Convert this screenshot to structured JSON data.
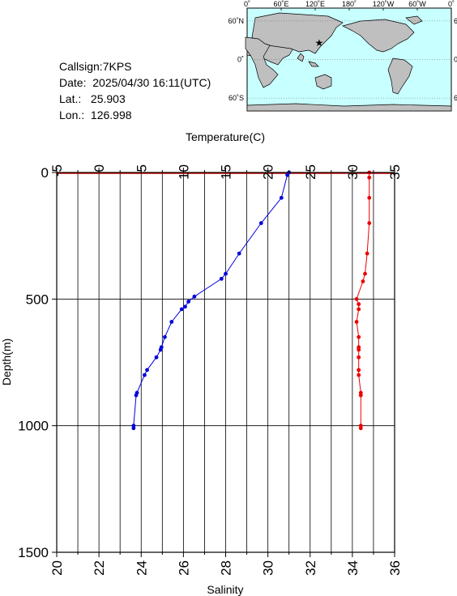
{
  "station": {
    "callsign": "Callsign:7KPS",
    "date": "Date:  2025/04/30 16:11(UTC)",
    "lat": "Lat.:   25.903",
    "lon": "Lon.:  126.998"
  },
  "map": {
    "lon_labels": [
      "0˚",
      "60˚E",
      "120˚E",
      "180˚",
      "120˚W",
      "60˚W",
      "0˚"
    ],
    "lat_labels": [
      "60˚N",
      "0˚",
      "60˚S"
    ],
    "marker": {
      "lat": 25.903,
      "lon": 126.998,
      "symbol": "★"
    },
    "colors": {
      "ocean": "#c8ffff",
      "land": "#bfbfbf",
      "marker": "#ff0000"
    }
  },
  "chart_data": {
    "type": "line",
    "ylabel": "Depth(m)",
    "ylim": [
      1500,
      0
    ],
    "yticks": [
      0,
      500,
      1000,
      1500
    ],
    "top_axis": {
      "label": "Temperature(C)",
      "lim": [
        -5,
        35
      ],
      "ticks": [
        -5,
        0,
        5,
        10,
        15,
        20,
        25,
        30,
        35
      ]
    },
    "bottom_axis": {
      "label": "Salinity",
      "lim": [
        20,
        36
      ],
      "ticks": [
        20,
        22,
        24,
        26,
        28,
        30,
        32,
        34,
        36
      ]
    },
    "grid": true,
    "series": [
      {
        "axis": "top",
        "color": "#0000dd",
        "points": [
          [
            22.5,
            0
          ],
          [
            22.3,
            10
          ],
          [
            21.6,
            100
          ],
          [
            19.2,
            200
          ],
          [
            16.6,
            320
          ],
          [
            15.0,
            400
          ],
          [
            14.5,
            420
          ],
          [
            11.3,
            490
          ],
          [
            10.6,
            510
          ],
          [
            10.2,
            530
          ],
          [
            9.8,
            540
          ],
          [
            8.6,
            590
          ],
          [
            7.8,
            650
          ],
          [
            7.4,
            690
          ],
          [
            7.3,
            700
          ],
          [
            6.8,
            730
          ],
          [
            5.7,
            780
          ],
          [
            5.4,
            800
          ],
          [
            4.5,
            870
          ],
          [
            4.4,
            880
          ],
          [
            4.1,
            1000
          ],
          [
            4.1,
            1010
          ]
        ]
      },
      {
        "axis": "bottom",
        "color": "#ee0000",
        "points": [
          [
            34.8,
            0
          ],
          [
            34.8,
            20
          ],
          [
            34.8,
            100
          ],
          [
            34.8,
            200
          ],
          [
            34.7,
            320
          ],
          [
            34.6,
            400
          ],
          [
            34.5,
            430
          ],
          [
            34.2,
            500
          ],
          [
            34.3,
            520
          ],
          [
            34.3,
            540
          ],
          [
            34.2,
            590
          ],
          [
            34.3,
            650
          ],
          [
            34.3,
            690
          ],
          [
            34.3,
            700
          ],
          [
            34.3,
            730
          ],
          [
            34.3,
            780
          ],
          [
            34.3,
            800
          ],
          [
            34.4,
            870
          ],
          [
            34.4,
            880
          ],
          [
            34.4,
            1000
          ],
          [
            34.4,
            1010
          ]
        ]
      }
    ]
  }
}
